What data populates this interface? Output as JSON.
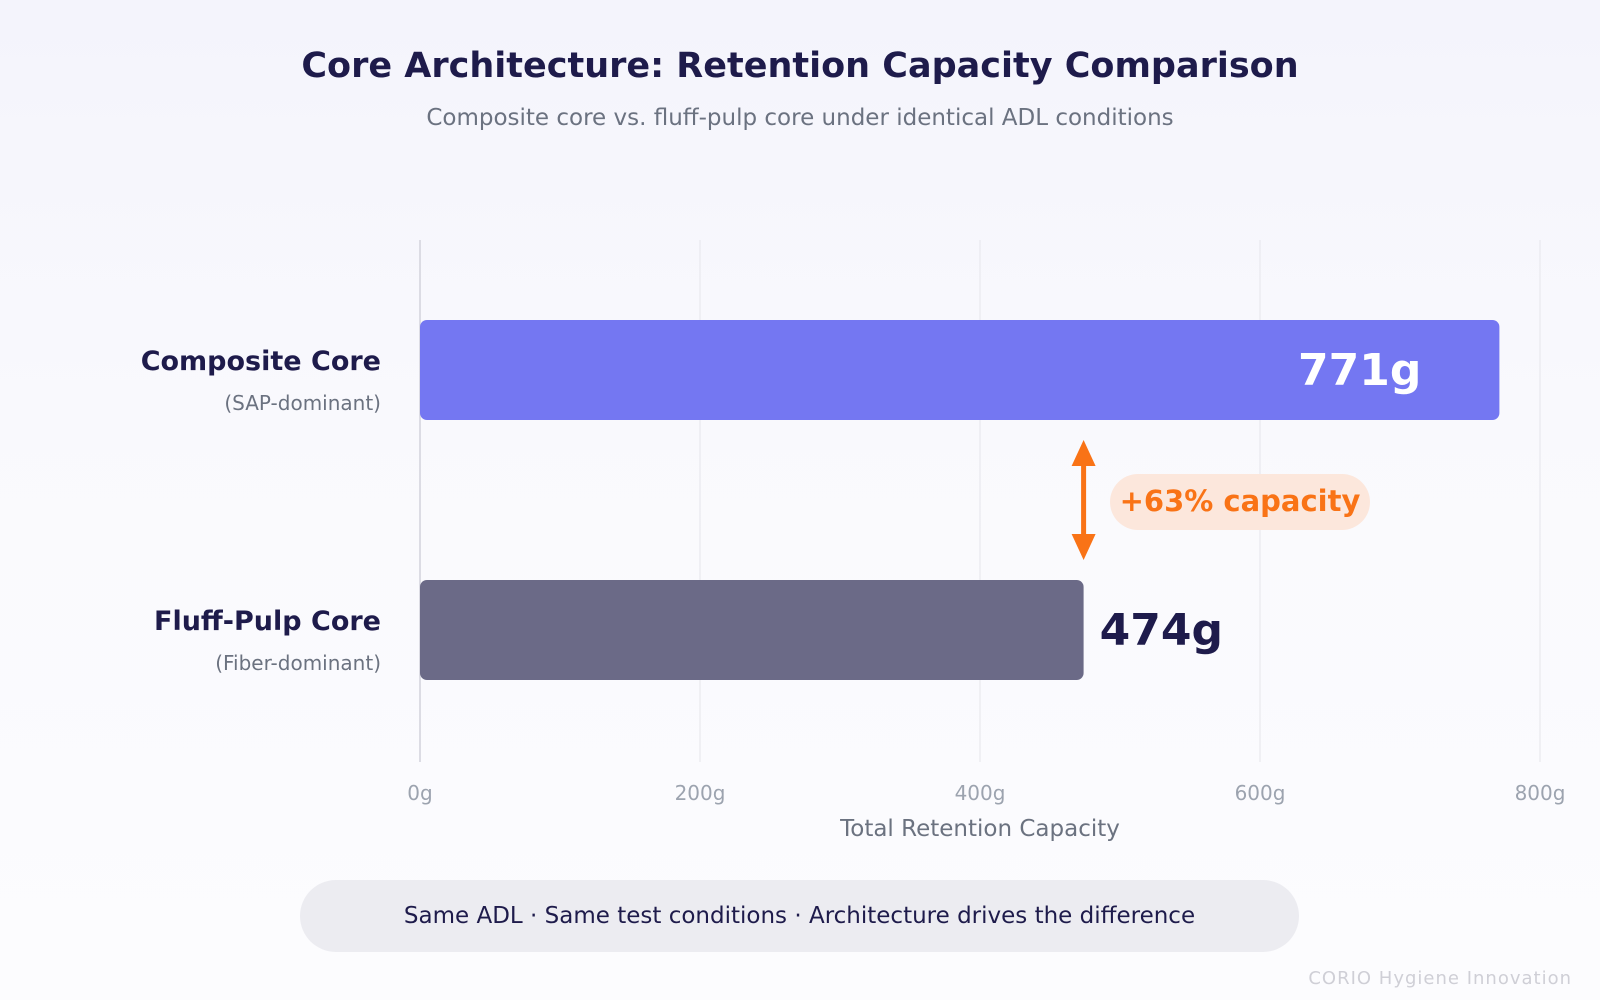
{
  "chart_data": {
    "type": "bar",
    "orientation": "horizontal",
    "title": "Core Architecture: Retention Capacity Comparison",
    "subtitle": "Composite core vs. fluff-pulp core under identical ADL conditions",
    "xlabel": "Total Retention Capacity",
    "xlim": [
      0,
      800
    ],
    "ticks": [
      {
        "value": 0,
        "label": "0g"
      },
      {
        "value": 200,
        "label": "200g"
      },
      {
        "value": 400,
        "label": "400g"
      },
      {
        "value": 600,
        "label": "600g"
      },
      {
        "value": 800,
        "label": "800g"
      }
    ],
    "grid": true,
    "bars": [
      {
        "category": "Composite Core",
        "sublabel": "(SAP-dominant)",
        "value": 771,
        "value_label": "771g",
        "color": "#7477f2",
        "label_inside": true
      },
      {
        "category": "Fluff-Pulp Core",
        "sublabel": "(Fiber-dominant)",
        "value": 474,
        "value_label": "474g",
        "color": "#6b6a87",
        "label_inside": false
      }
    ],
    "annotation": {
      "text": "+63% capacity",
      "color": "#f97316",
      "badge_color": "#fce7dc"
    }
  },
  "footer": {
    "note": "Same ADL · Same test conditions · Architecture drives the difference",
    "brand": "CORIO Hygiene Innovation"
  }
}
